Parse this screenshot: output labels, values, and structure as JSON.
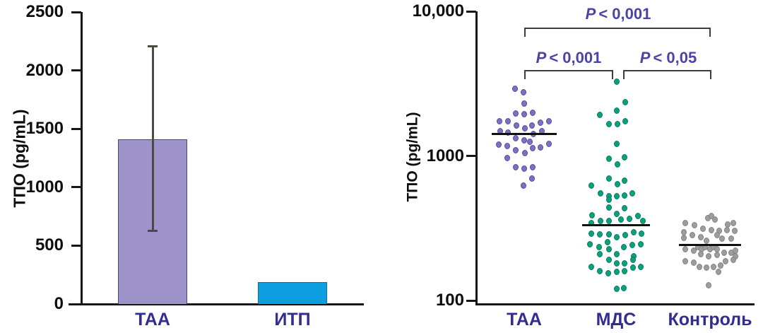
{
  "chart_data": [
    {
      "type": "bar",
      "title": "",
      "ylabel": "ТПО (pg/mL)",
      "categories": [
        "ТАА",
        "ИТП"
      ],
      "values": [
        1410,
        190
      ],
      "error_bars": [
        {
          "category": "ТАА",
          "low": 630,
          "high": 2210
        }
      ],
      "ylim": [
        0,
        2500
      ],
      "y_ticks": [
        {
          "value": 0,
          "label": "0"
        },
        {
          "value": 500,
          "label": "500"
        },
        {
          "value": 1000,
          "label": "1000"
        },
        {
          "value": 1500,
          "label": "1500"
        },
        {
          "value": 2000,
          "label": "2000"
        },
        {
          "value": 2500,
          "label": "2500"
        }
      ],
      "bar_colors": [
        "#9e94cb",
        "#0c9ee1"
      ],
      "bar_edge_colors": [
        "#4c4773",
        "#0b72a8"
      ],
      "grid": false,
      "legend": "none"
    },
    {
      "type": "scatter",
      "title": "",
      "ylabel": "ТПО (pg/mL)",
      "yscale": "log",
      "ylim": [
        100,
        10000
      ],
      "y_ticks": [
        {
          "value": 100,
          "label": "100"
        },
        {
          "value": 1000,
          "label": "1000"
        },
        {
          "value": 10000,
          "label": "10,000"
        }
      ],
      "grid": false,
      "legend": "none",
      "groups": [
        {
          "label": "ТАА",
          "color": "#7b71bf",
          "edge_color": "#584ca7",
          "median": 1410,
          "points": [
            [
              2930,
              -13
            ],
            [
              2770,
              -1
            ],
            [
              2290,
              0
            ],
            [
              1955,
              -12
            ],
            [
              1934,
              0
            ],
            [
              1977,
              12
            ],
            [
              1746,
              -35
            ],
            [
              1727,
              -23
            ],
            [
              1614,
              -11
            ],
            [
              1543,
              1
            ],
            [
              1614,
              11
            ],
            [
              1707,
              23
            ],
            [
              1727,
              35
            ],
            [
              1475,
              -34
            ],
            [
              1458,
              -23
            ],
            [
              1410,
              13
            ],
            [
              1475,
              25
            ],
            [
              1191,
              -36
            ],
            [
              1177,
              -24
            ],
            [
              1318,
              -12
            ],
            [
              1274,
              0
            ],
            [
              1259,
              8
            ],
            [
              1100,
              -12
            ],
            [
              1051,
              1
            ],
            [
              1138,
              12
            ],
            [
              1151,
              23
            ],
            [
              1205,
              35
            ],
            [
              962,
              -24
            ],
            [
              831,
              -12
            ],
            [
              821,
              0
            ],
            [
              831,
              12
            ],
            [
              694,
              11
            ],
            [
              620,
              -1
            ]
          ]
        },
        {
          "label": "МДС",
          "color": "#0aa17d",
          "edge_color": "#077d62",
          "median": 330,
          "points": [
            [
              3280,
              1
            ],
            [
              2365,
              13
            ],
            [
              2045,
              1
            ],
            [
              1911,
              -23
            ],
            [
              1651,
              -10
            ],
            [
              1651,
              2
            ],
            [
              1746,
              13
            ],
            [
              1205,
              1
            ],
            [
              951,
              -10
            ],
            [
              973,
              12
            ],
            [
              869,
              2
            ],
            [
              694,
              -10
            ],
            [
              634,
              2
            ],
            [
              671,
              12
            ],
            [
              620,
              -35
            ],
            [
              548,
              -22
            ],
            [
              529,
              -10
            ],
            [
              525,
              1
            ],
            [
              534,
              12
            ],
            [
              548,
              23
            ],
            [
              495,
              -10
            ],
            [
              442,
              -10
            ],
            [
              437,
              12
            ],
            [
              395,
              1
            ],
            [
              390,
              -34
            ],
            [
              345,
              -35
            ],
            [
              353,
              -22
            ],
            [
              353,
              -10
            ],
            [
              361,
              7
            ],
            [
              369,
              19
            ],
            [
              386,
              31
            ],
            [
              353,
              38
            ],
            [
              291,
              -35
            ],
            [
              285,
              -23
            ],
            [
              288,
              -10
            ],
            [
              275,
              1
            ],
            [
              282,
              13
            ],
            [
              295,
              25
            ],
            [
              291,
              36
            ],
            [
              246,
              -37
            ],
            [
              235,
              -24
            ],
            [
              252,
              -12
            ],
            [
              233,
              11
            ],
            [
              241,
              23
            ],
            [
              246,
              35
            ],
            [
              210,
              -23
            ],
            [
              225,
              -10
            ],
            [
              208,
              1
            ],
            [
              203,
              25
            ],
            [
              192,
              -10
            ],
            [
              180,
              1
            ],
            [
              180,
              12
            ],
            [
              190,
              24
            ],
            [
              170,
              -35
            ],
            [
              160,
              -23
            ],
            [
              155,
              -11
            ],
            [
              158,
              1
            ],
            [
              160,
              12
            ],
            [
              168,
              24
            ],
            [
              170,
              35
            ],
            [
              120,
              1
            ],
            [
              122,
              11
            ]
          ]
        },
        {
          "label": "Контроль",
          "color": "#9d9d9d",
          "edge_color": "#838383",
          "median": 243,
          "points": [
            [
              373,
              -3
            ],
            [
              382,
              2
            ],
            [
              361,
              7
            ],
            [
              345,
              -35
            ],
            [
              330,
              -22
            ],
            [
              315,
              -10
            ],
            [
              337,
              25
            ],
            [
              345,
              33
            ],
            [
              305,
              2
            ],
            [
              302,
              13
            ],
            [
              305,
              24
            ],
            [
              302,
              35
            ],
            [
              298,
              -37
            ],
            [
              272,
              -37
            ],
            [
              282,
              -25
            ],
            [
              275,
              -13
            ],
            [
              282,
              10
            ],
            [
              269,
              17
            ],
            [
              269,
              30
            ],
            [
              258,
              -5
            ],
            [
              227,
              -35
            ],
            [
              220,
              -23
            ],
            [
              233,
              -17
            ],
            [
              227,
              -12
            ],
            [
              233,
              -7
            ],
            [
              227,
              0
            ],
            [
              233,
              5
            ],
            [
              227,
              10
            ],
            [
              208,
              -13
            ],
            [
              203,
              -2
            ],
            [
              206,
              10
            ],
            [
              213,
              20
            ],
            [
              215,
              30
            ],
            [
              220,
              36
            ],
            [
              201,
              36
            ],
            [
              186,
              -35
            ],
            [
              182,
              -23
            ],
            [
              186,
              22
            ],
            [
              190,
              33
            ],
            [
              170,
              -15
            ],
            [
              168,
              -5
            ],
            [
              171,
              5
            ],
            [
              175,
              15
            ],
            [
              157,
              12
            ],
            [
              128,
              -2
            ]
          ]
        }
      ],
      "annotations": [
        {
          "p_symbol": "P",
          "comparison": "< 0,001",
          "label": "P < 0,001",
          "from": "ТАА",
          "to": "Контроль"
        },
        {
          "p_symbol": "P",
          "comparison": "< 0,001",
          "label": "P < 0,001",
          "from": "ТАА",
          "to": "МДС"
        },
        {
          "p_symbol": "P",
          "comparison": "< 0,05",
          "label": "P < 0,05",
          "from": "МДС",
          "to": "Контроль"
        }
      ]
    }
  ]
}
